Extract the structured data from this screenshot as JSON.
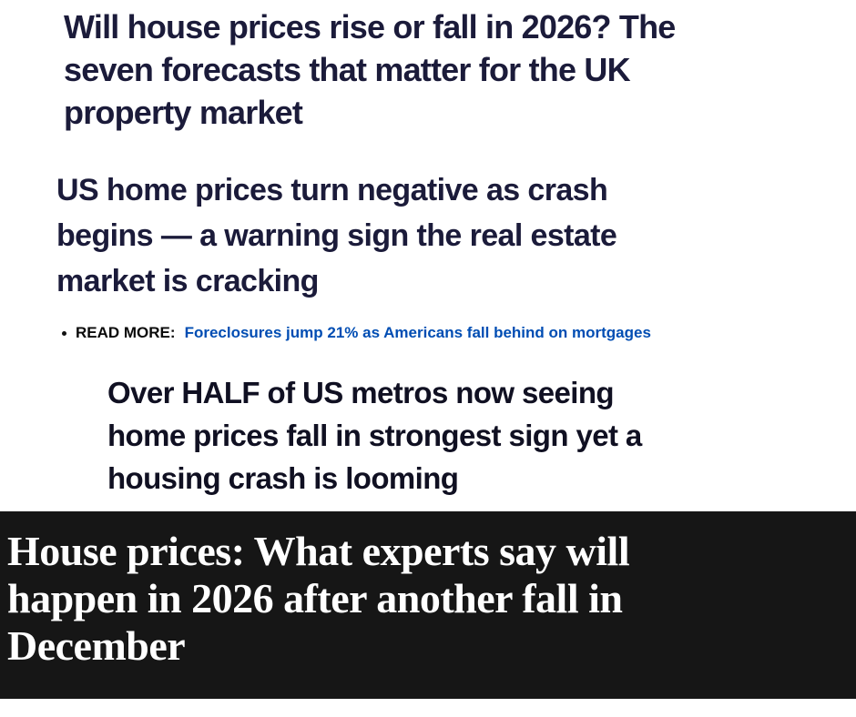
{
  "headline_uk": {
    "lines": [
      "Will house prices rise or fall in 2026? The",
      "seven forecasts that matter for the UK",
      "property market"
    ]
  },
  "headline_us_crash": {
    "lines": [
      "US home prices turn negative as crash",
      "begins — a warning sign the real estate",
      "market is cracking"
    ]
  },
  "read_more": {
    "label": "READ MORE:",
    "link_text": "Foreclosures jump 21% as Americans fall behind on mortgages"
  },
  "headline_us_metros": {
    "lines": [
      "Over HALF of US metros now seeing",
      "home prices fall in strongest sign yet a",
      "housing crash is looming"
    ]
  },
  "banner": {
    "lines": [
      "House prices: What experts say will",
      "happen in 2026 after another fall in",
      "December"
    ]
  },
  "colors": {
    "headline_text": "#1b1b3a",
    "link_blue": "#004db3",
    "banner_background": "#161616",
    "banner_text": "#ffffff"
  }
}
